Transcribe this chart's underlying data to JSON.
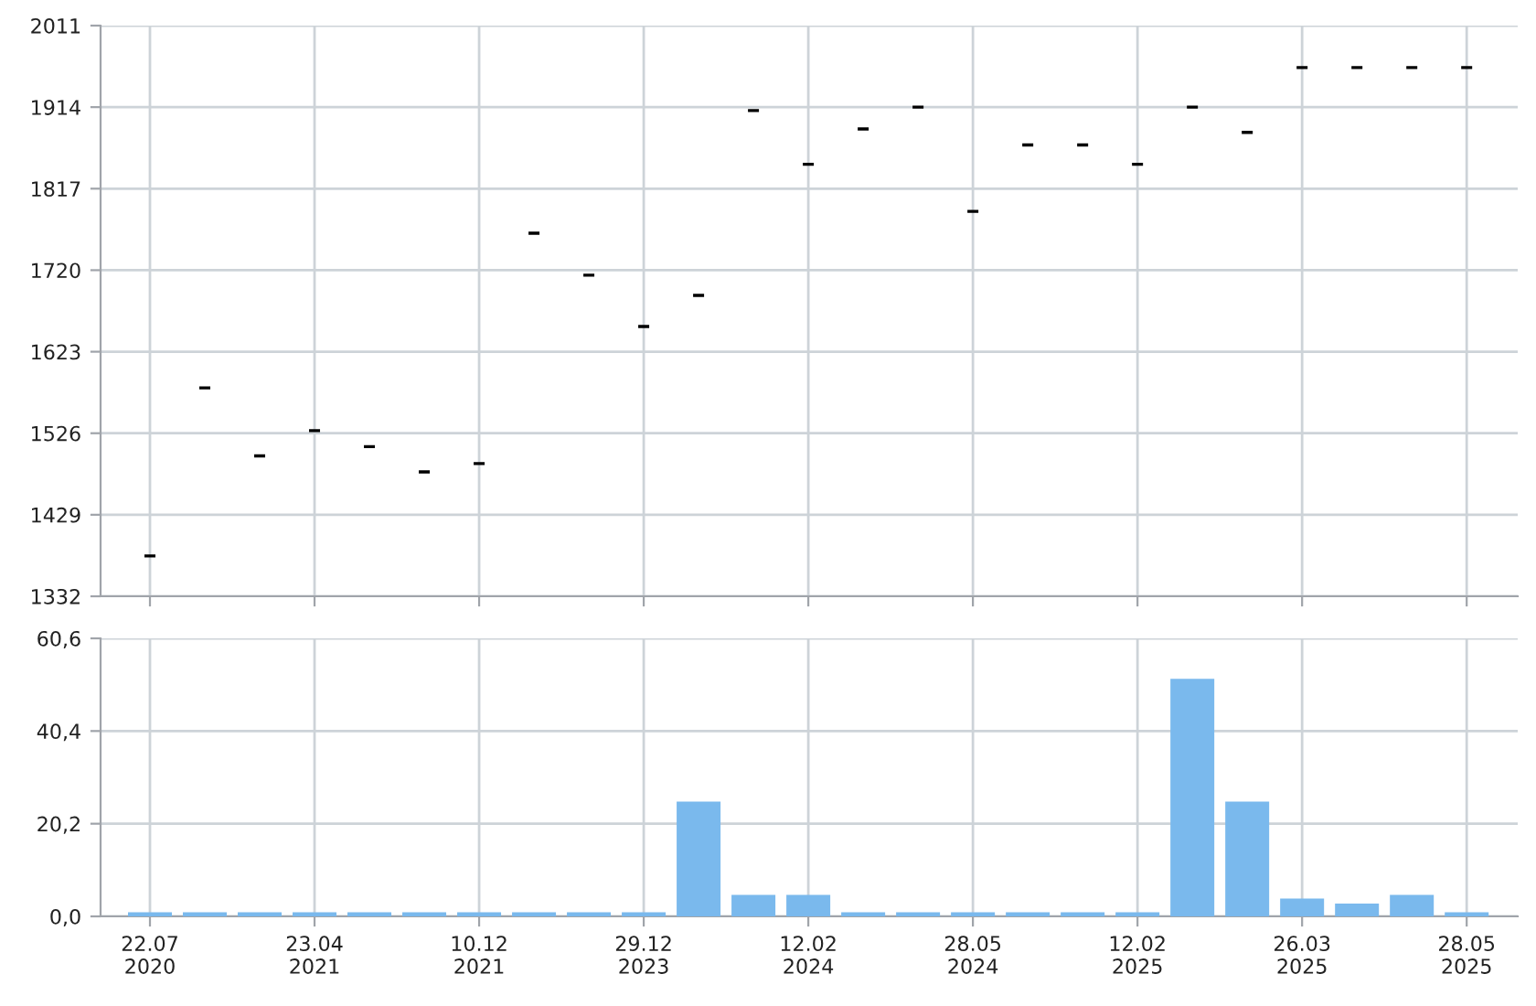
{
  "chart_data": [
    {
      "type": "candlestick",
      "categories": [
        null,
        null,
        null,
        null,
        null,
        null,
        null,
        null,
        null,
        null,
        null,
        null,
        null,
        null,
        null,
        null,
        null,
        null,
        null,
        null,
        null,
        null,
        null,
        null,
        null
      ],
      "ohlc": [
        [
          1380,
          1380,
          1380,
          1380
        ],
        [
          1580,
          1580,
          1580,
          1580
        ],
        [
          1499,
          1499,
          1499,
          1499
        ],
        [
          1529,
          1529,
          1529,
          1529
        ],
        [
          1510,
          1510,
          1510,
          1510
        ],
        [
          1480,
          1480,
          1480,
          1480
        ],
        [
          1490,
          1490,
          1490,
          1490
        ],
        [
          1764,
          1764,
          1764,
          1764
        ],
        [
          1714,
          1714,
          1714,
          1714
        ],
        [
          1653,
          1653,
          1653,
          1653
        ],
        [
          1690,
          1690,
          1690,
          1690
        ],
        [
          1910,
          1910,
          1910,
          1910
        ],
        [
          1846,
          1846,
          1846,
          1846
        ],
        [
          1888,
          1888,
          1888,
          1888
        ],
        [
          1914,
          1914,
          1914,
          1914
        ],
        [
          1790,
          1790,
          1790,
          1790
        ],
        [
          1869,
          1869,
          1869,
          1869
        ],
        [
          1869,
          1869,
          1869,
          1869
        ],
        [
          1846,
          1846,
          1846,
          1846
        ],
        [
          1914,
          1914,
          1914,
          1914
        ],
        [
          1884,
          1884,
          1884,
          1884
        ],
        [
          1961,
          1961,
          1961,
          1961
        ],
        [
          1961,
          1961,
          1961,
          1961
        ],
        [
          1961,
          1961,
          1961,
          1961
        ],
        [
          1961,
          1961,
          1961,
          1961
        ]
      ],
      "color": "#000000",
      "ylim": [
        1332,
        2011
      ],
      "yticks": [
        1332,
        1429,
        1526,
        1623,
        1720,
        1817,
        1914,
        2011
      ],
      "grid": true,
      "tick_labels": "y"
    },
    {
      "type": "bar",
      "categories": [
        "22.07\n2020",
        null,
        null,
        "23.04\n2021",
        null,
        null,
        "10.12\n2021",
        null,
        null,
        "29.12\n2023",
        null,
        null,
        "12.02\n2024",
        null,
        null,
        "28.05\n2024",
        null,
        null,
        "12.02\n2025",
        null,
        null,
        "26.03\n2025",
        null,
        null,
        "28.05\n2025"
      ],
      "values": [
        0.9,
        0.9,
        0.9,
        0.9,
        0.9,
        0.9,
        0.9,
        0.9,
        0.9,
        0.9,
        25.0,
        4.7,
        4.7,
        0.9,
        0.9,
        0.9,
        0.9,
        0.9,
        0.9,
        51.8,
        25.0,
        3.9,
        2.8,
        4.7,
        0.9
      ],
      "color": "#7ab9ed",
      "ylim": [
        0,
        60.6
      ],
      "yticks": [
        {
          "value": 0,
          "label": "0,0"
        },
        {
          "value": 20.2,
          "label": "20,2"
        },
        {
          "value": 40.4,
          "label": "40,4"
        },
        {
          "value": 60.6,
          "label": "60,6"
        }
      ],
      "grid": true
    }
  ]
}
